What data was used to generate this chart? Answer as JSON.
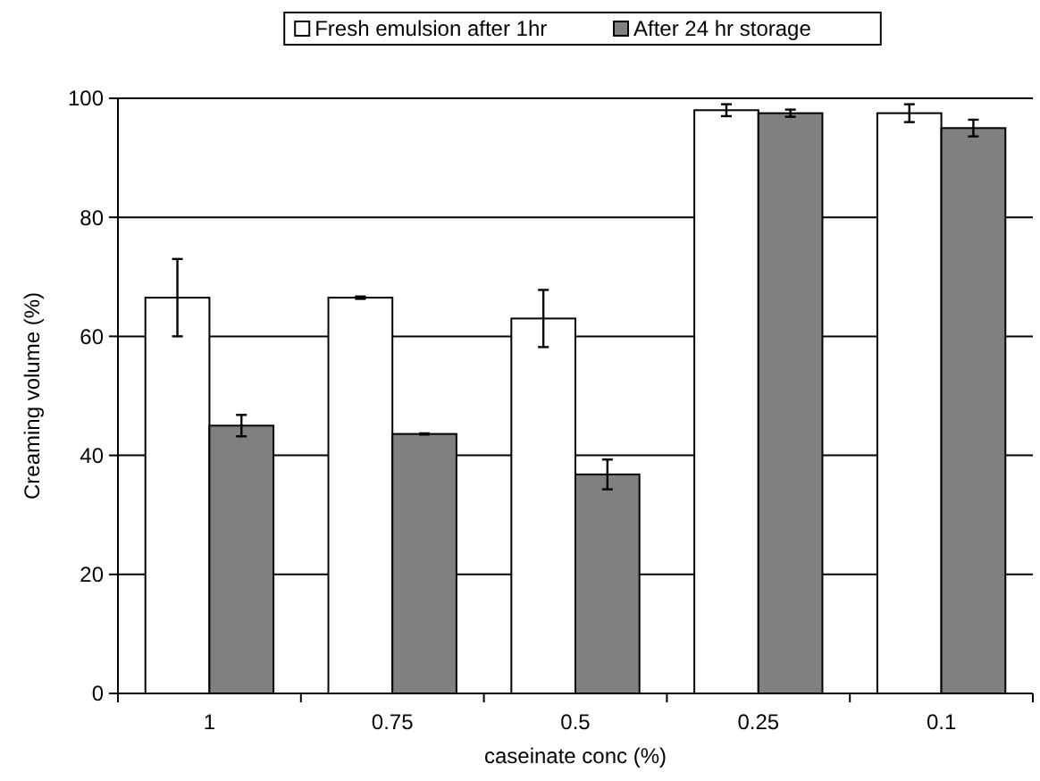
{
  "chart_data": {
    "type": "bar",
    "xlabel": "caseinate conc (%)",
    "ylabel": "Creaming volume (%)",
    "categories": [
      "1",
      "0.75",
      "0.5",
      "0.25",
      "0.1"
    ],
    "series": [
      {
        "name": "Fresh emulsion after 1hr",
        "color": "#ffffff",
        "values": [
          66.5,
          66.5,
          63,
          98,
          97.5
        ],
        "errors": [
          6.5,
          0.2,
          4.8,
          1,
          1.5
        ]
      },
      {
        "name": "After 24 hr storage",
        "color": "#808080",
        "values": [
          45,
          43.6,
          36.8,
          97.5,
          95
        ],
        "errors": [
          1.8,
          0.1,
          2.5,
          0.6,
          1.4
        ]
      }
    ],
    "ylim": [
      0,
      100
    ],
    "yticks": [
      0,
      20,
      40,
      60,
      80,
      100
    ],
    "grid": "y",
    "legend": "top"
  }
}
